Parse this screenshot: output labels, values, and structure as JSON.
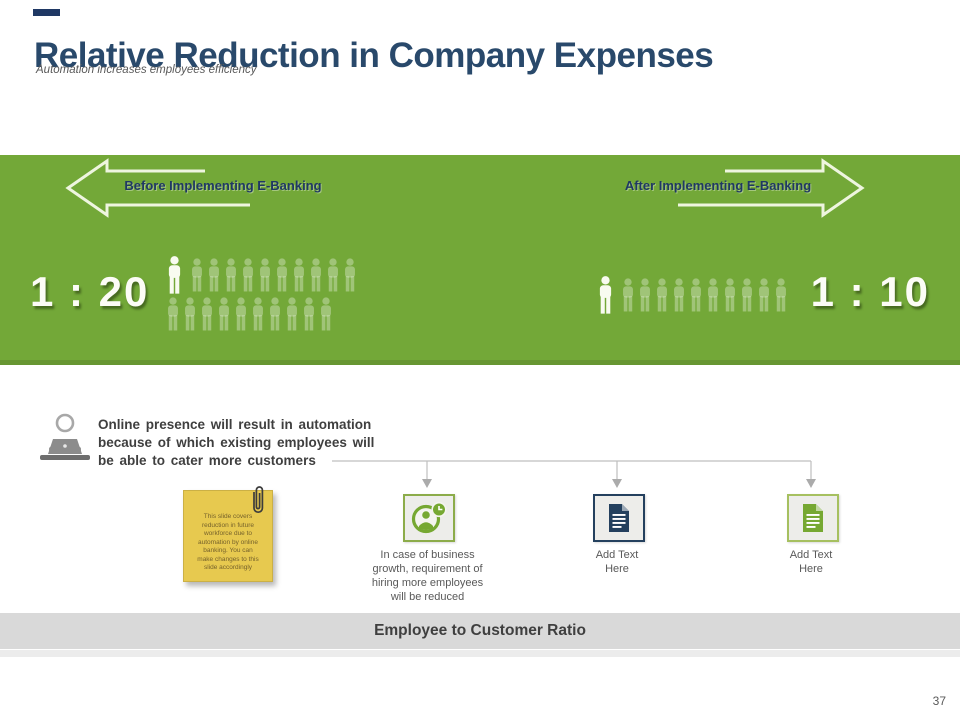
{
  "slide": {
    "title": "Relative Reduction in Company Expenses",
    "subtitle": "Automation increases employees efficiency",
    "page_number": "37",
    "footer_bar_title": "Employee to Customer Ratio"
  },
  "banner": {
    "bg_color": "#73A838",
    "before": {
      "label": "Before Implementing E-Banking",
      "ratio": "1 : 20",
      "employees": 1,
      "customers": 20,
      "rows": 2
    },
    "after": {
      "label": "After Implementing E-Banking",
      "ratio": "1 : 10",
      "employees": 1,
      "customers": 10,
      "rows": 1
    }
  },
  "insight": {
    "icon": "person-at-laptop-icon",
    "text": "Online presence will result in automation\nbecause of which existing employees will\nbe able to cater more customers"
  },
  "sticky_note": {
    "icon": "paperclip-icon",
    "color": "#E7C94F",
    "text": "This slide covers\nreduction in future\nworkforce due to\nautomation by online\nbanking. You can\nmake changes to this\nslide accordingly"
  },
  "branches": [
    {
      "icon": "employee-clock-icon",
      "icon_color": "#76A832",
      "border_color": "#8CAC4A",
      "label": "In case of business\ngrowth, requirement of\nhiring more employees\nwill be reduced"
    },
    {
      "icon": "document-icon",
      "icon_color": "#24405E",
      "border_color": "#24405E",
      "label": "Add Text\nHere"
    },
    {
      "icon": "document-icon",
      "icon_color": "#76A832",
      "border_color": "#A6C060",
      "label": "Add Text\nHere"
    }
  ],
  "colors": {
    "title_navy": "#29496B",
    "accent_navy": "#1F3864",
    "band_green": "#73A838",
    "arrow_outline": "#EEF5DF",
    "footer_gray": "#D9D9D9",
    "text_gray": "#595959"
  }
}
